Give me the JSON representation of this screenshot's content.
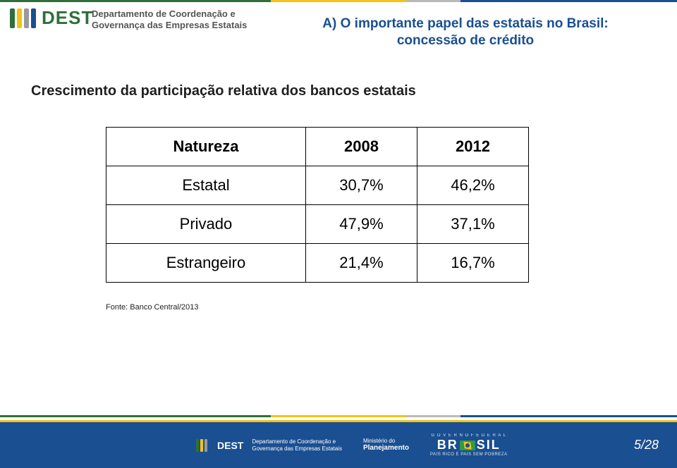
{
  "header": {
    "logo_text": "DEST",
    "line1": "Departamento de Coordenação e",
    "line2": "Governança das Empresas Estatais",
    "logo_bar_colors": [
      "#2e6f3a",
      "#f3c416",
      "#9a9a9a",
      "#1a4f91"
    ]
  },
  "title": {
    "line1": "A) O importante papel das estatais no Brasil:",
    "line2": "concessão de crédito"
  },
  "subtitle": "Crescimento da participação relativa dos bancos estatais",
  "table": {
    "columns": [
      "Natureza",
      "2008",
      "2012"
    ],
    "rows": [
      [
        "Estatal",
        "30,7%",
        "46,2%"
      ],
      [
        "Privado",
        "47,9%",
        "37,1%"
      ],
      [
        "Estrangeiro",
        "21,4%",
        "16,7%"
      ]
    ],
    "border_color": "#000000",
    "font_family": "Comic Sans MS",
    "header_fontsize": 22,
    "cell_fontsize": 22
  },
  "source": "Fonte: Banco Central/2013",
  "footer": {
    "dest": "DEST",
    "dept_line1": "Departamento de Coordenação e",
    "dept_line2": "Governança das Empresas Estatais",
    "min_line1": "Ministério do",
    "min_line2": "Planejamento",
    "gov_top": "G O V E R N O   F E D E R A L",
    "gov_brand_left": "BR",
    "gov_brand_right": "SIL",
    "gov_bottom": "PAÍS RICO É PAÍS SEM POBREZA",
    "background_color": "#1a4f91",
    "accent_color": "#f3c416"
  },
  "page": {
    "current": "5",
    "total": "28",
    "sep": "/"
  }
}
